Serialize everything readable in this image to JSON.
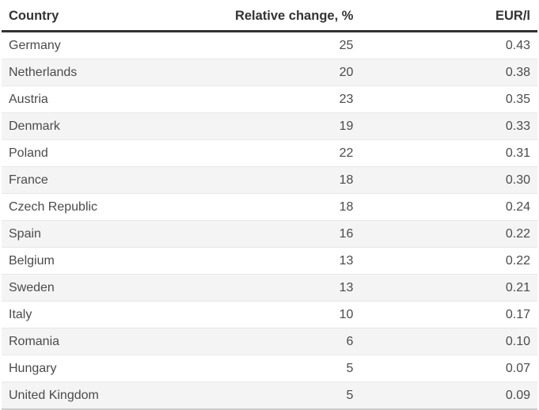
{
  "colors": {
    "header-text": "#333333",
    "cell-text": "#4b4b4b",
    "stripe": "#f4f4f4",
    "row-divider": "#e8e8e8",
    "header-rule": "#333333",
    "bottom-rule": "#cccccc",
    "bg": "#ffffff"
  },
  "table": {
    "columns": [
      {
        "label": "Country",
        "align": "left"
      },
      {
        "label": "Relative change, %",
        "align": "right"
      },
      {
        "label": "EUR/l",
        "align": "right"
      }
    ],
    "rows": [
      {
        "country": "Germany",
        "relative_change": "25",
        "eur_l": "0.43"
      },
      {
        "country": "Netherlands",
        "relative_change": "20",
        "eur_l": "0.38"
      },
      {
        "country": "Austria",
        "relative_change": "23",
        "eur_l": "0.35"
      },
      {
        "country": "Denmark",
        "relative_change": "19",
        "eur_l": "0.33"
      },
      {
        "country": "Poland",
        "relative_change": "22",
        "eur_l": "0.31"
      },
      {
        "country": "France",
        "relative_change": "18",
        "eur_l": "0.30"
      },
      {
        "country": "Czech Republic",
        "relative_change": "18",
        "eur_l": "0.24"
      },
      {
        "country": "Spain",
        "relative_change": "16",
        "eur_l": "0.22"
      },
      {
        "country": "Belgium",
        "relative_change": "13",
        "eur_l": "0.22"
      },
      {
        "country": "Sweden",
        "relative_change": "13",
        "eur_l": "0.21"
      },
      {
        "country": "Italy",
        "relative_change": "10",
        "eur_l": "0.17"
      },
      {
        "country": "Romania",
        "relative_change": "6",
        "eur_l": "0.10"
      },
      {
        "country": "Hungary",
        "relative_change": "5",
        "eur_l": "0.07"
      },
      {
        "country": "United Kingdom",
        "relative_change": "5",
        "eur_l": "0.09"
      }
    ]
  },
  "chart_data": {
    "type": "table",
    "title": "",
    "columns": [
      "Country",
      "Relative change, %",
      "EUR/l"
    ],
    "rows": [
      [
        "Germany",
        25,
        0.43
      ],
      [
        "Netherlands",
        20,
        0.38
      ],
      [
        "Austria",
        23,
        0.35
      ],
      [
        "Denmark",
        19,
        0.33
      ],
      [
        "Poland",
        22,
        0.31
      ],
      [
        "France",
        18,
        0.3
      ],
      [
        "Czech Republic",
        18,
        0.24
      ],
      [
        "Spain",
        16,
        0.22
      ],
      [
        "Belgium",
        13,
        0.22
      ],
      [
        "Sweden",
        13,
        0.21
      ],
      [
        "Italy",
        10,
        0.17
      ],
      [
        "Romania",
        6,
        0.1
      ],
      [
        "Hungary",
        5,
        0.07
      ],
      [
        "United Kingdom",
        5,
        0.09
      ]
    ]
  }
}
